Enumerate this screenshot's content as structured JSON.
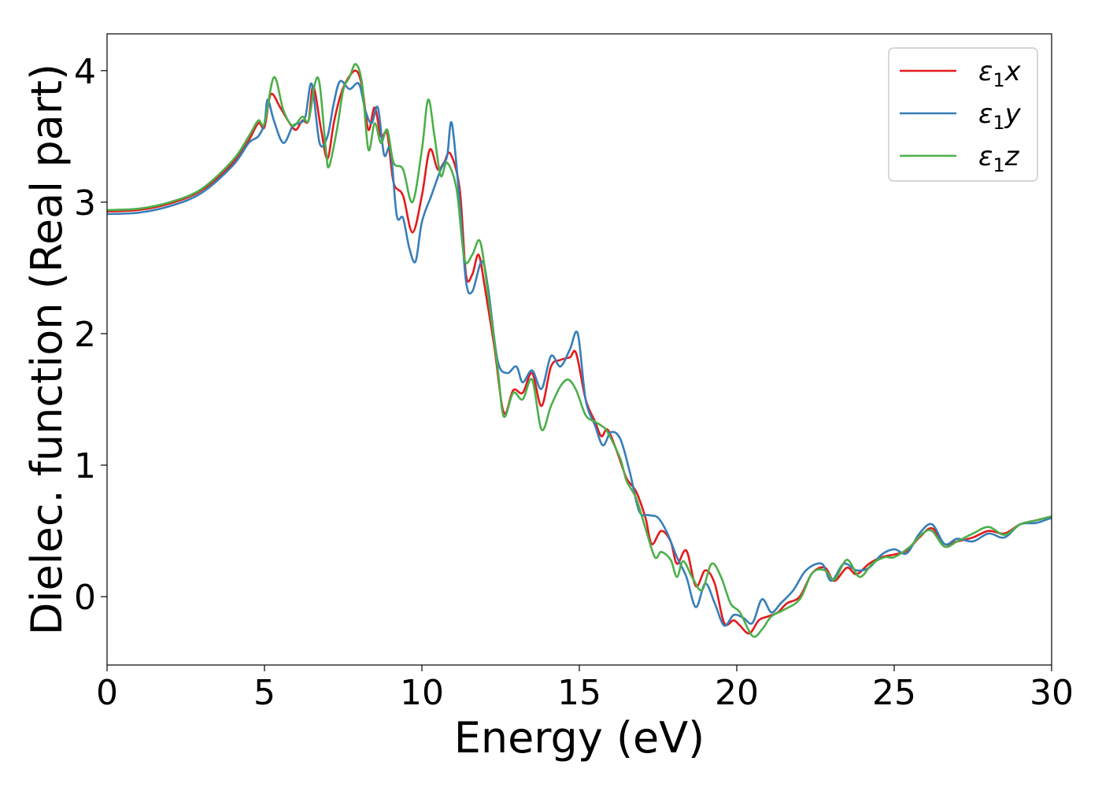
{
  "chart_data": {
    "type": "line",
    "xlabel": "Energy (eV)",
    "ylabel": "Dielec. function (Real part)",
    "xlim": [
      0,
      30
    ],
    "ylim": [
      -0.52,
      4.28
    ],
    "xticks": [
      0,
      5,
      10,
      15,
      20,
      25,
      30
    ],
    "yticks": [
      0,
      1,
      2,
      3,
      4
    ],
    "grid": false,
    "legend_position": "top-right",
    "series": [
      {
        "name": "ε1x",
        "legend": {
          "sym": "ε",
          "sub": "1",
          "axis": "x"
        },
        "color": "#e41a1c",
        "points": [
          [
            0,
            2.93
          ],
          [
            1,
            2.94
          ],
          [
            2,
            2.99
          ],
          [
            3,
            3.09
          ],
          [
            4,
            3.3
          ],
          [
            4.5,
            3.47
          ],
          [
            4.8,
            3.6
          ],
          [
            5,
            3.57
          ],
          [
            5.2,
            3.82
          ],
          [
            5.5,
            3.72
          ],
          [
            5.8,
            3.6
          ],
          [
            6,
            3.55
          ],
          [
            6.2,
            3.62
          ],
          [
            6.4,
            3.62
          ],
          [
            6.55,
            3.88
          ],
          [
            6.8,
            3.55
          ],
          [
            7,
            3.33
          ],
          [
            7.2,
            3.6
          ],
          [
            7.4,
            3.8
          ],
          [
            7.6,
            3.92
          ],
          [
            7.9,
            4.0
          ],
          [
            8.1,
            3.88
          ],
          [
            8.3,
            3.55
          ],
          [
            8.5,
            3.72
          ],
          [
            8.7,
            3.5
          ],
          [
            8.9,
            3.52
          ],
          [
            9.1,
            3.15
          ],
          [
            9.4,
            3.05
          ],
          [
            9.7,
            2.77
          ],
          [
            10,
            3.05
          ],
          [
            10.25,
            3.4
          ],
          [
            10.5,
            3.25
          ],
          [
            10.7,
            3.3
          ],
          [
            10.9,
            3.37
          ],
          [
            11.2,
            3.1
          ],
          [
            11.4,
            2.45
          ],
          [
            11.6,
            2.45
          ],
          [
            11.8,
            2.6
          ],
          [
            12,
            2.35
          ],
          [
            12.3,
            1.9
          ],
          [
            12.6,
            1.4
          ],
          [
            12.9,
            1.57
          ],
          [
            13.2,
            1.55
          ],
          [
            13.5,
            1.7
          ],
          [
            13.8,
            1.45
          ],
          [
            14.1,
            1.75
          ],
          [
            14.4,
            1.8
          ],
          [
            14.7,
            1.82
          ],
          [
            14.9,
            1.85
          ],
          [
            15.2,
            1.5
          ],
          [
            15.5,
            1.33
          ],
          [
            15.7,
            1.22
          ],
          [
            15.9,
            1.27
          ],
          [
            16.2,
            1.1
          ],
          [
            16.5,
            0.9
          ],
          [
            16.8,
            0.8
          ],
          [
            17.1,
            0.6
          ],
          [
            17.3,
            0.4
          ],
          [
            17.6,
            0.5
          ],
          [
            17.9,
            0.42
          ],
          [
            18.1,
            0.25
          ],
          [
            18.4,
            0.35
          ],
          [
            18.7,
            0.08
          ],
          [
            19,
            0.2
          ],
          [
            19.3,
            0.1
          ],
          [
            19.6,
            -0.2
          ],
          [
            19.9,
            -0.18
          ],
          [
            20.1,
            -0.22
          ],
          [
            20.4,
            -0.28
          ],
          [
            20.7,
            -0.18
          ],
          [
            21,
            -0.15
          ],
          [
            21.3,
            -0.12
          ],
          [
            21.6,
            -0.05
          ],
          [
            22,
            0.0
          ],
          [
            22.4,
            0.18
          ],
          [
            22.8,
            0.22
          ],
          [
            23.1,
            0.12
          ],
          [
            23.5,
            0.22
          ],
          [
            23.8,
            0.17
          ],
          [
            24.2,
            0.25
          ],
          [
            24.6,
            0.3
          ],
          [
            25,
            0.32
          ],
          [
            25.4,
            0.35
          ],
          [
            25.8,
            0.45
          ],
          [
            26.2,
            0.52
          ],
          [
            26.6,
            0.4
          ],
          [
            27,
            0.42
          ],
          [
            27.5,
            0.45
          ],
          [
            28,
            0.5
          ],
          [
            28.5,
            0.48
          ],
          [
            29,
            0.55
          ],
          [
            29.5,
            0.58
          ],
          [
            30,
            0.61
          ]
        ]
      },
      {
        "name": "ε1y",
        "legend": {
          "sym": "ε",
          "sub": "1",
          "axis": "y"
        },
        "color": "#377eb8",
        "points": [
          [
            0,
            2.91
          ],
          [
            1,
            2.92
          ],
          [
            2,
            2.97
          ],
          [
            3,
            3.07
          ],
          [
            4,
            3.28
          ],
          [
            4.5,
            3.45
          ],
          [
            4.8,
            3.5
          ],
          [
            5,
            3.6
          ],
          [
            5.1,
            3.78
          ],
          [
            5.3,
            3.62
          ],
          [
            5.6,
            3.45
          ],
          [
            5.9,
            3.58
          ],
          [
            6.1,
            3.6
          ],
          [
            6.3,
            3.65
          ],
          [
            6.5,
            3.9
          ],
          [
            6.75,
            3.45
          ],
          [
            7,
            3.5
          ],
          [
            7.2,
            3.75
          ],
          [
            7.4,
            3.92
          ],
          [
            7.7,
            3.86
          ],
          [
            8,
            3.9
          ],
          [
            8.2,
            3.7
          ],
          [
            8.4,
            3.6
          ],
          [
            8.6,
            3.72
          ],
          [
            8.8,
            3.36
          ],
          [
            9,
            3.4
          ],
          [
            9.2,
            2.9
          ],
          [
            9.4,
            2.88
          ],
          [
            9.6,
            2.65
          ],
          [
            9.8,
            2.55
          ],
          [
            10,
            2.85
          ],
          [
            10.3,
            3.05
          ],
          [
            10.6,
            3.25
          ],
          [
            10.8,
            3.35
          ],
          [
            10.95,
            3.6
          ],
          [
            11.2,
            3.0
          ],
          [
            11.4,
            2.4
          ],
          [
            11.6,
            2.32
          ],
          [
            11.9,
            2.55
          ],
          [
            12.1,
            2.35
          ],
          [
            12.4,
            1.8
          ],
          [
            12.7,
            1.7
          ],
          [
            13,
            1.75
          ],
          [
            13.2,
            1.63
          ],
          [
            13.5,
            1.72
          ],
          [
            13.8,
            1.58
          ],
          [
            14.1,
            1.83
          ],
          [
            14.4,
            1.75
          ],
          [
            14.7,
            1.88
          ],
          [
            14.95,
            2.0
          ],
          [
            15.2,
            1.5
          ],
          [
            15.5,
            1.3
          ],
          [
            15.75,
            1.15
          ],
          [
            16,
            1.25
          ],
          [
            16.3,
            1.2
          ],
          [
            16.6,
            0.95
          ],
          [
            16.9,
            0.65
          ],
          [
            17.2,
            0.62
          ],
          [
            17.5,
            0.6
          ],
          [
            17.8,
            0.48
          ],
          [
            18.1,
            0.3
          ],
          [
            18.4,
            0.15
          ],
          [
            18.7,
            -0.08
          ],
          [
            19,
            0.1
          ],
          [
            19.3,
            -0.05
          ],
          [
            19.6,
            -0.22
          ],
          [
            19.9,
            -0.14
          ],
          [
            20.2,
            -0.16
          ],
          [
            20.5,
            -0.2
          ],
          [
            20.8,
            -0.02
          ],
          [
            21.1,
            -0.12
          ],
          [
            21.4,
            -0.05
          ],
          [
            21.8,
            0.05
          ],
          [
            22.2,
            0.2
          ],
          [
            22.7,
            0.25
          ],
          [
            23,
            0.12
          ],
          [
            23.4,
            0.25
          ],
          [
            23.8,
            0.2
          ],
          [
            24.2,
            0.22
          ],
          [
            24.6,
            0.32
          ],
          [
            25,
            0.36
          ],
          [
            25.4,
            0.33
          ],
          [
            25.8,
            0.48
          ],
          [
            26.2,
            0.55
          ],
          [
            26.6,
            0.4
          ],
          [
            27,
            0.44
          ],
          [
            27.5,
            0.42
          ],
          [
            28,
            0.48
          ],
          [
            28.5,
            0.45
          ],
          [
            29,
            0.55
          ],
          [
            29.5,
            0.56
          ],
          [
            30,
            0.6
          ]
        ]
      },
      {
        "name": "ε1z",
        "legend": {
          "sym": "ε",
          "sub": "1",
          "axis": "z"
        },
        "color": "#4daf4a",
        "points": [
          [
            0,
            2.94
          ],
          [
            1,
            2.95
          ],
          [
            2,
            3.0
          ],
          [
            3,
            3.1
          ],
          [
            4,
            3.32
          ],
          [
            4.5,
            3.5
          ],
          [
            4.8,
            3.62
          ],
          [
            5,
            3.6
          ],
          [
            5.3,
            3.95
          ],
          [
            5.6,
            3.7
          ],
          [
            5.9,
            3.58
          ],
          [
            6.2,
            3.65
          ],
          [
            6.4,
            3.62
          ],
          [
            6.6,
            3.9
          ],
          [
            6.75,
            3.9
          ],
          [
            6.95,
            3.4
          ],
          [
            7.05,
            3.27
          ],
          [
            7.3,
            3.55
          ],
          [
            7.5,
            3.85
          ],
          [
            7.7,
            3.95
          ],
          [
            7.9,
            4.05
          ],
          [
            8.1,
            3.9
          ],
          [
            8.3,
            3.4
          ],
          [
            8.5,
            3.6
          ],
          [
            8.7,
            3.45
          ],
          [
            8.9,
            3.55
          ],
          [
            9.1,
            3.3
          ],
          [
            9.4,
            3.25
          ],
          [
            9.7,
            3.0
          ],
          [
            10,
            3.4
          ],
          [
            10.2,
            3.78
          ],
          [
            10.4,
            3.5
          ],
          [
            10.6,
            3.2
          ],
          [
            10.8,
            3.3
          ],
          [
            11.1,
            3.1
          ],
          [
            11.35,
            2.57
          ],
          [
            11.6,
            2.6
          ],
          [
            11.85,
            2.7
          ],
          [
            12.1,
            2.3
          ],
          [
            12.4,
            1.75
          ],
          [
            12.6,
            1.37
          ],
          [
            12.9,
            1.55
          ],
          [
            13.2,
            1.5
          ],
          [
            13.5,
            1.65
          ],
          [
            13.8,
            1.27
          ],
          [
            14.1,
            1.45
          ],
          [
            14.4,
            1.6
          ],
          [
            14.65,
            1.65
          ],
          [
            14.9,
            1.57
          ],
          [
            15.2,
            1.38
          ],
          [
            15.5,
            1.33
          ],
          [
            15.7,
            1.3
          ],
          [
            15.9,
            1.25
          ],
          [
            16.3,
            1.05
          ],
          [
            16.5,
            0.88
          ],
          [
            16.8,
            0.75
          ],
          [
            17.1,
            0.52
          ],
          [
            17.4,
            0.3
          ],
          [
            17.6,
            0.34
          ],
          [
            17.9,
            0.28
          ],
          [
            18.1,
            0.15
          ],
          [
            18.3,
            0.27
          ],
          [
            18.6,
            0.14
          ],
          [
            18.9,
            0.05
          ],
          [
            19.2,
            0.25
          ],
          [
            19.5,
            0.15
          ],
          [
            19.8,
            -0.05
          ],
          [
            20.1,
            -0.12
          ],
          [
            20.5,
            -0.3
          ],
          [
            20.8,
            -0.25
          ],
          [
            21.1,
            -0.15
          ],
          [
            21.5,
            -0.1
          ],
          [
            22,
            -0.02
          ],
          [
            22.4,
            0.18
          ],
          [
            22.8,
            0.2
          ],
          [
            23.1,
            0.13
          ],
          [
            23.5,
            0.28
          ],
          [
            23.9,
            0.15
          ],
          [
            24.3,
            0.25
          ],
          [
            24.7,
            0.3
          ],
          [
            25,
            0.3
          ],
          [
            25.5,
            0.38
          ],
          [
            25.9,
            0.48
          ],
          [
            26.2,
            0.5
          ],
          [
            26.6,
            0.38
          ],
          [
            27,
            0.42
          ],
          [
            27.5,
            0.48
          ],
          [
            28,
            0.53
          ],
          [
            28.5,
            0.47
          ],
          [
            29,
            0.55
          ],
          [
            29.5,
            0.58
          ],
          [
            30,
            0.61
          ]
        ]
      }
    ]
  }
}
